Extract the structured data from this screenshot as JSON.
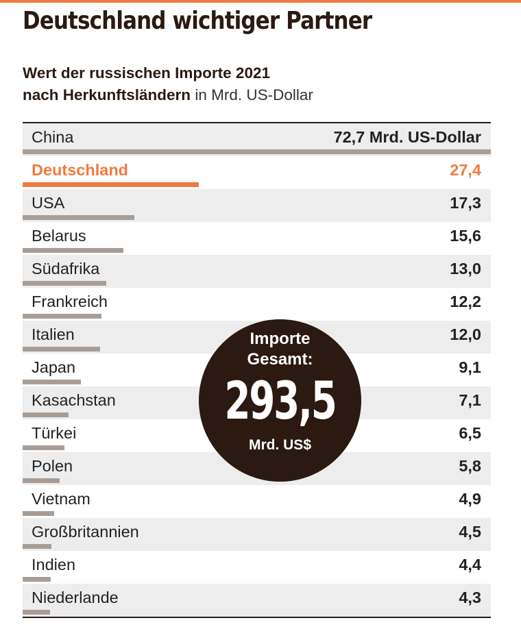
{
  "title": "Deutschland wichtiger Partner",
  "subtitle": {
    "line1": "Wert der russischen Importe 2021",
    "line2": "nach Herkunftsländern",
    "unit": "in Mrd. US-Dollar"
  },
  "colors": {
    "accent": "#f07b3f",
    "bar": "#a89d95",
    "dark": "#2a1a12",
    "shade": "#ededed"
  },
  "chart_data": {
    "type": "bar",
    "orientation": "horizontal",
    "unit": "Mrd. US-Dollar",
    "xlim": [
      0,
      72.7
    ],
    "highlight": "Deutschland",
    "categories": [
      "China",
      "Deutschland",
      "USA",
      "Belarus",
      "Südafrika",
      "Frankreich",
      "Italien",
      "Japan",
      "Kasachstan",
      "Türkei",
      "Polen",
      "Vietnam",
      "Großbritannien",
      "Indien",
      "Niederlande"
    ],
    "values": [
      72.7,
      27.4,
      17.3,
      15.6,
      13.0,
      12.2,
      12.0,
      9.1,
      7.1,
      6.5,
      5.8,
      4.9,
      4.5,
      4.4,
      4.3
    ],
    "value_labels": [
      "72,7 Mrd. US-Dollar",
      "27,4",
      "17,3",
      "15,6",
      "13,0",
      "12,2",
      "12,0",
      "9,1",
      "7,1",
      "6,5",
      "5,8",
      "4,9",
      "4,5",
      "4,4",
      "4,3"
    ]
  },
  "total": {
    "label_line1": "Importe",
    "label_line2": "Gesamt:",
    "value": "293,5",
    "unit": "Mrd. US$"
  }
}
